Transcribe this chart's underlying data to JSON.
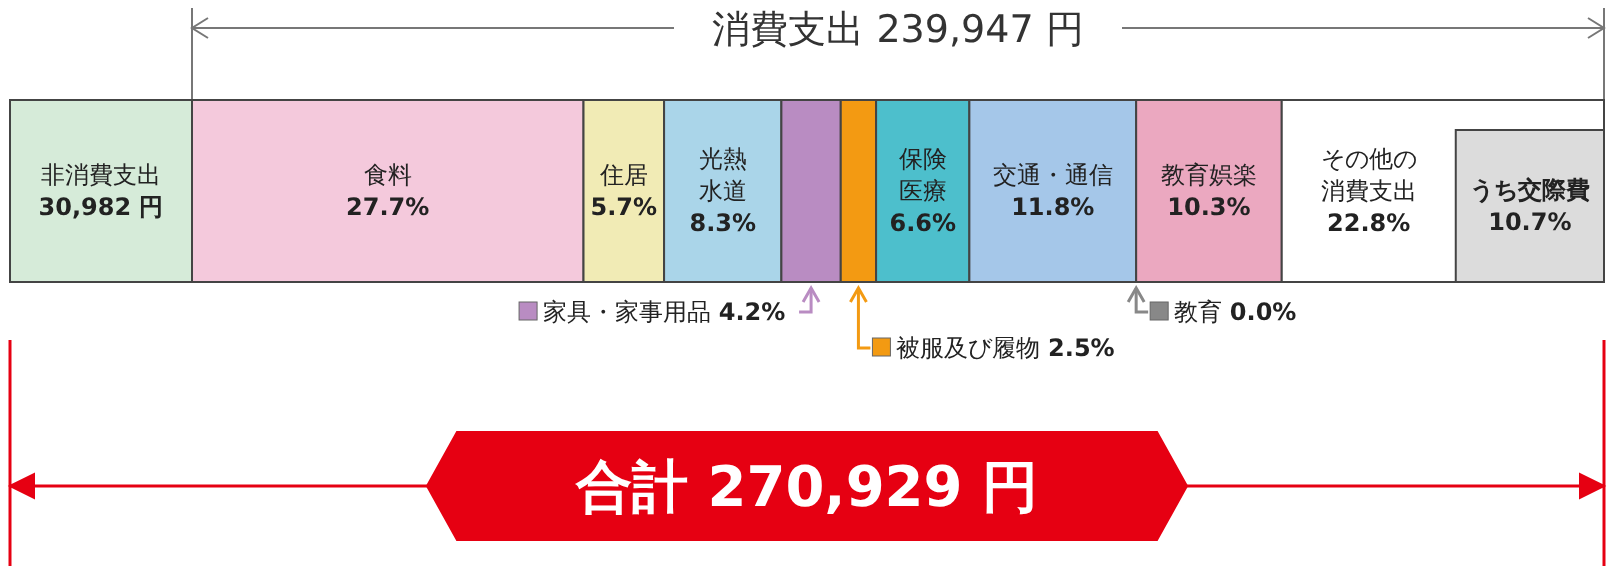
{
  "chart_data": {
    "type": "other",
    "categories": [
      null
    ],
    "series": [
      {
        "name": "非消費支出",
        "color": "#d6ebd9",
        "values": [
          30982
        ],
        "value_labels": [
          "30,982 円"
        ]
      },
      {
        "name": "食料",
        "color": "#f4c9dc",
        "values": [
          27.7
        ],
        "value_labels": [
          "27.7%"
        ],
        "axis": "x2"
      },
      {
        "name": "住居",
        "color": "#f1ebb5",
        "values": [
          5.7
        ],
        "value_labels": [
          "5.7%"
        ],
        "axis": "x2"
      },
      {
        "name": "光熱水道",
        "color": "#aad5e9",
        "values": [
          8.3
        ],
        "value_labels": [
          "8.3%"
        ],
        "axis": "x2"
      },
      {
        "name": "家具・家事用品",
        "color": "#b98cc2",
        "values": [
          4.2
        ],
        "value_labels": [
          "4.2%"
        ],
        "axis": "x2"
      },
      {
        "name": "被服及び履物",
        "color": "#f39a12",
        "values": [
          2.5
        ],
        "value_labels": [
          "2.5%"
        ],
        "axis": "x2"
      },
      {
        "name": "保険医療",
        "color": "#4dbfcc",
        "values": [
          6.6
        ],
        "value_labels": [
          "6.6%"
        ],
        "axis": "x2"
      },
      {
        "name": "交通・通信",
        "color": "#a5c7e9",
        "values": [
          11.8
        ],
        "value_labels": [
          "11.8%"
        ],
        "axis": "x2"
      },
      {
        "name": "教育",
        "color": "#888888",
        "values": [
          0
        ],
        "value_labels": [
          "0.0%"
        ],
        "axis": "x2"
      },
      {
        "name": "教育娯楽",
        "color": "#eba8c0",
        "values": [
          10.3
        ],
        "value_labels": [
          "10.3%"
        ],
        "axis": "x2"
      },
      {
        "name": "その他の消費支出",
        "color": "#ffffff",
        "values": [
          22.8
        ],
        "value_labels": [
          "22.8%"
        ],
        "axis": "x2"
      }
    ],
    "annotations": [
      "消費支出 239,947 円",
      "合計 270,929 円",
      "うち交際費 10.7%"
    ]
  }
}
